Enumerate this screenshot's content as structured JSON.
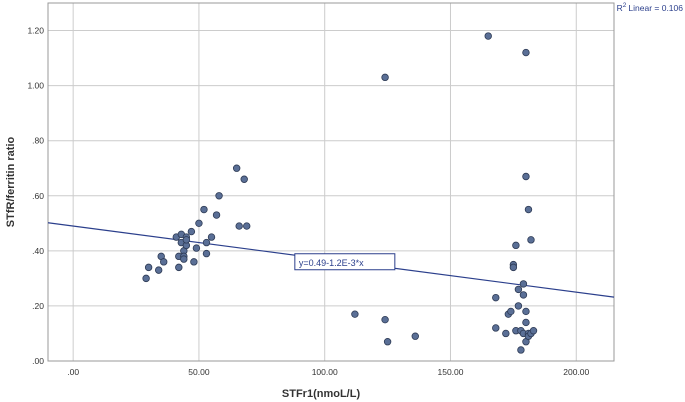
{
  "chart_data": {
    "type": "scatter",
    "title": "",
    "xlabel": "STFr1(nmoL/L)",
    "ylabel": "STfR/ferritin ratio",
    "xlim": [
      -10,
      215
    ],
    "ylim": [
      0,
      1.3
    ],
    "x_ticks": [
      0,
      50,
      100,
      150,
      200
    ],
    "x_tick_labels": [
      ".00",
      "50.00",
      "100.00",
      "150.00",
      "200.00"
    ],
    "y_ticks": [
      0,
      0.2,
      0.4,
      0.6,
      0.8,
      1.0,
      1.2
    ],
    "y_tick_labels": [
      ".00",
      ".20",
      ".40",
      ".60",
      ".80",
      "1.00",
      "1.20"
    ],
    "grid": true,
    "marker_color": "#5a6f96",
    "line_color": "#2b3f8c",
    "r2_label": "Linear = 0.106",
    "r2_prefix": "R",
    "r2_superscript": "2",
    "fit_line": {
      "intercept": 0.49,
      "slope": -0.0012,
      "label": "y=0.49-1.2E-3*x",
      "label_at_x": 108
    },
    "points": [
      [
        29,
        0.3
      ],
      [
        30,
        0.34
      ],
      [
        34,
        0.33
      ],
      [
        35,
        0.38
      ],
      [
        36,
        0.36
      ],
      [
        41,
        0.45
      ],
      [
        42,
        0.34
      ],
      [
        42,
        0.38
      ],
      [
        43,
        0.43
      ],
      [
        43,
        0.46
      ],
      [
        44,
        0.4
      ],
      [
        44,
        0.38
      ],
      [
        44,
        0.37
      ],
      [
        45,
        0.45
      ],
      [
        45,
        0.42
      ],
      [
        45,
        0.44
      ],
      [
        47,
        0.47
      ],
      [
        48,
        0.36
      ],
      [
        49,
        0.41
      ],
      [
        50,
        0.5
      ],
      [
        52,
        0.55
      ],
      [
        53,
        0.43
      ],
      [
        53,
        0.39
      ],
      [
        55,
        0.45
      ],
      [
        57,
        0.53
      ],
      [
        58,
        0.6
      ],
      [
        65,
        0.7
      ],
      [
        66,
        0.49
      ],
      [
        68,
        0.66
      ],
      [
        69,
        0.49
      ],
      [
        112,
        0.17
      ],
      [
        124,
        1.03
      ],
      [
        124,
        0.15
      ],
      [
        125,
        0.07
      ],
      [
        136,
        0.09
      ],
      [
        165,
        1.18
      ],
      [
        168,
        0.23
      ],
      [
        168,
        0.12
      ],
      [
        172,
        0.1
      ],
      [
        173,
        0.17
      ],
      [
        174,
        0.18
      ],
      [
        175,
        0.35
      ],
      [
        175,
        0.34
      ],
      [
        176,
        0.42
      ],
      [
        176,
        0.11
      ],
      [
        177,
        0.26
      ],
      [
        177,
        0.2
      ],
      [
        178,
        0.11
      ],
      [
        178,
        0.04
      ],
      [
        179,
        0.1
      ],
      [
        179,
        0.28
      ],
      [
        179,
        0.24
      ],
      [
        180,
        0.67
      ],
      [
        180,
        1.12
      ],
      [
        180,
        0.18
      ],
      [
        180,
        0.14
      ],
      [
        180,
        0.07
      ],
      [
        181,
        0.55
      ],
      [
        181,
        0.1
      ],
      [
        181,
        0.09
      ],
      [
        182,
        0.44
      ],
      [
        182,
        0.1
      ],
      [
        183,
        0.11
      ]
    ]
  }
}
